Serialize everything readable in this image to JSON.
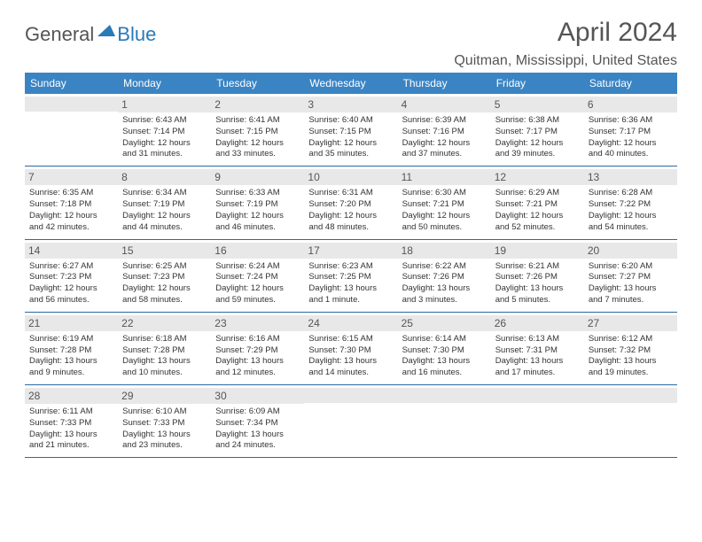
{
  "logo": {
    "general": "General",
    "blue": "Blue"
  },
  "header": {
    "title": "April 2024",
    "location": "Quitman, Mississippi, United States"
  },
  "styling": {
    "header_bg": "#3a84c4",
    "header_fg": "#ffffff",
    "row_border": "#2a6aa0",
    "daynum_bg": "#e8e8e8",
    "title_fontsize": 30,
    "location_fontsize": 16,
    "dayhead_fontsize": 12,
    "cell_fontsize": 9.5
  },
  "day_headers": [
    "Sunday",
    "Monday",
    "Tuesday",
    "Wednesday",
    "Thursday",
    "Friday",
    "Saturday"
  ],
  "weeks": [
    [
      null,
      {
        "n": "1",
        "sr": "Sunrise: 6:43 AM",
        "ss": "Sunset: 7:14 PM",
        "d1": "Daylight: 12 hours",
        "d2": "and 31 minutes."
      },
      {
        "n": "2",
        "sr": "Sunrise: 6:41 AM",
        "ss": "Sunset: 7:15 PM",
        "d1": "Daylight: 12 hours",
        "d2": "and 33 minutes."
      },
      {
        "n": "3",
        "sr": "Sunrise: 6:40 AM",
        "ss": "Sunset: 7:15 PM",
        "d1": "Daylight: 12 hours",
        "d2": "and 35 minutes."
      },
      {
        "n": "4",
        "sr": "Sunrise: 6:39 AM",
        "ss": "Sunset: 7:16 PM",
        "d1": "Daylight: 12 hours",
        "d2": "and 37 minutes."
      },
      {
        "n": "5",
        "sr": "Sunrise: 6:38 AM",
        "ss": "Sunset: 7:17 PM",
        "d1": "Daylight: 12 hours",
        "d2": "and 39 minutes."
      },
      {
        "n": "6",
        "sr": "Sunrise: 6:36 AM",
        "ss": "Sunset: 7:17 PM",
        "d1": "Daylight: 12 hours",
        "d2": "and 40 minutes."
      }
    ],
    [
      {
        "n": "7",
        "sr": "Sunrise: 6:35 AM",
        "ss": "Sunset: 7:18 PM",
        "d1": "Daylight: 12 hours",
        "d2": "and 42 minutes."
      },
      {
        "n": "8",
        "sr": "Sunrise: 6:34 AM",
        "ss": "Sunset: 7:19 PM",
        "d1": "Daylight: 12 hours",
        "d2": "and 44 minutes."
      },
      {
        "n": "9",
        "sr": "Sunrise: 6:33 AM",
        "ss": "Sunset: 7:19 PM",
        "d1": "Daylight: 12 hours",
        "d2": "and 46 minutes."
      },
      {
        "n": "10",
        "sr": "Sunrise: 6:31 AM",
        "ss": "Sunset: 7:20 PM",
        "d1": "Daylight: 12 hours",
        "d2": "and 48 minutes."
      },
      {
        "n": "11",
        "sr": "Sunrise: 6:30 AM",
        "ss": "Sunset: 7:21 PM",
        "d1": "Daylight: 12 hours",
        "d2": "and 50 minutes."
      },
      {
        "n": "12",
        "sr": "Sunrise: 6:29 AM",
        "ss": "Sunset: 7:21 PM",
        "d1": "Daylight: 12 hours",
        "d2": "and 52 minutes."
      },
      {
        "n": "13",
        "sr": "Sunrise: 6:28 AM",
        "ss": "Sunset: 7:22 PM",
        "d1": "Daylight: 12 hours",
        "d2": "and 54 minutes."
      }
    ],
    [
      {
        "n": "14",
        "sr": "Sunrise: 6:27 AM",
        "ss": "Sunset: 7:23 PM",
        "d1": "Daylight: 12 hours",
        "d2": "and 56 minutes."
      },
      {
        "n": "15",
        "sr": "Sunrise: 6:25 AM",
        "ss": "Sunset: 7:23 PM",
        "d1": "Daylight: 12 hours",
        "d2": "and 58 minutes."
      },
      {
        "n": "16",
        "sr": "Sunrise: 6:24 AM",
        "ss": "Sunset: 7:24 PM",
        "d1": "Daylight: 12 hours",
        "d2": "and 59 minutes."
      },
      {
        "n": "17",
        "sr": "Sunrise: 6:23 AM",
        "ss": "Sunset: 7:25 PM",
        "d1": "Daylight: 13 hours",
        "d2": "and 1 minute."
      },
      {
        "n": "18",
        "sr": "Sunrise: 6:22 AM",
        "ss": "Sunset: 7:26 PM",
        "d1": "Daylight: 13 hours",
        "d2": "and 3 minutes."
      },
      {
        "n": "19",
        "sr": "Sunrise: 6:21 AM",
        "ss": "Sunset: 7:26 PM",
        "d1": "Daylight: 13 hours",
        "d2": "and 5 minutes."
      },
      {
        "n": "20",
        "sr": "Sunrise: 6:20 AM",
        "ss": "Sunset: 7:27 PM",
        "d1": "Daylight: 13 hours",
        "d2": "and 7 minutes."
      }
    ],
    [
      {
        "n": "21",
        "sr": "Sunrise: 6:19 AM",
        "ss": "Sunset: 7:28 PM",
        "d1": "Daylight: 13 hours",
        "d2": "and 9 minutes."
      },
      {
        "n": "22",
        "sr": "Sunrise: 6:18 AM",
        "ss": "Sunset: 7:28 PM",
        "d1": "Daylight: 13 hours",
        "d2": "and 10 minutes."
      },
      {
        "n": "23",
        "sr": "Sunrise: 6:16 AM",
        "ss": "Sunset: 7:29 PM",
        "d1": "Daylight: 13 hours",
        "d2": "and 12 minutes."
      },
      {
        "n": "24",
        "sr": "Sunrise: 6:15 AM",
        "ss": "Sunset: 7:30 PM",
        "d1": "Daylight: 13 hours",
        "d2": "and 14 minutes."
      },
      {
        "n": "25",
        "sr": "Sunrise: 6:14 AM",
        "ss": "Sunset: 7:30 PM",
        "d1": "Daylight: 13 hours",
        "d2": "and 16 minutes."
      },
      {
        "n": "26",
        "sr": "Sunrise: 6:13 AM",
        "ss": "Sunset: 7:31 PM",
        "d1": "Daylight: 13 hours",
        "d2": "and 17 minutes."
      },
      {
        "n": "27",
        "sr": "Sunrise: 6:12 AM",
        "ss": "Sunset: 7:32 PM",
        "d1": "Daylight: 13 hours",
        "d2": "and 19 minutes."
      }
    ],
    [
      {
        "n": "28",
        "sr": "Sunrise: 6:11 AM",
        "ss": "Sunset: 7:33 PM",
        "d1": "Daylight: 13 hours",
        "d2": "and 21 minutes."
      },
      {
        "n": "29",
        "sr": "Sunrise: 6:10 AM",
        "ss": "Sunset: 7:33 PM",
        "d1": "Daylight: 13 hours",
        "d2": "and 23 minutes."
      },
      {
        "n": "30",
        "sr": "Sunrise: 6:09 AM",
        "ss": "Sunset: 7:34 PM",
        "d1": "Daylight: 13 hours",
        "d2": "and 24 minutes."
      },
      null,
      null,
      null,
      null
    ]
  ]
}
